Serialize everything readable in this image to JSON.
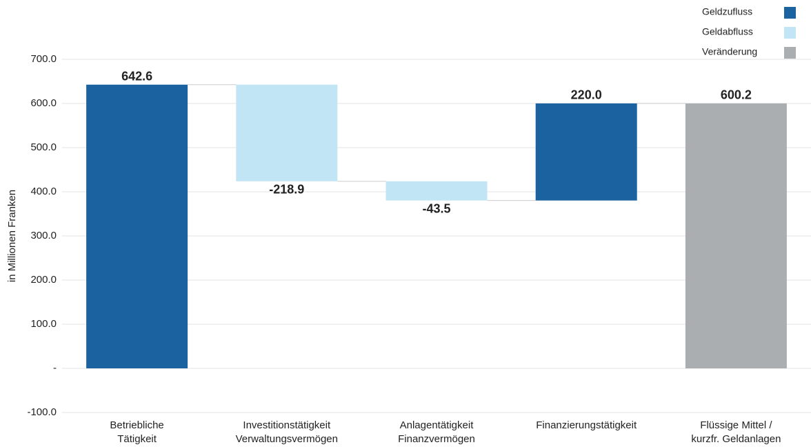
{
  "chart_data": {
    "type": "waterfall",
    "ylabel": "in Millionen Franken",
    "categories": [
      [
        "Betriebliche",
        "Tätigkeit"
      ],
      [
        "Investitionstätigkeit",
        "Verwaltungsvermögen"
      ],
      [
        "Anlagentätigkeit",
        "Finanzvermögen"
      ],
      [
        "Finanzierungstätigkeit"
      ],
      [
        "Flüssige Mittel /",
        "kurzfr. Geldanlagen"
      ]
    ],
    "values": [
      642.6,
      -218.9,
      -43.5,
      220.0,
      600.2
    ],
    "value_labels": [
      "642.6",
      "-218.9",
      "-43.5",
      "220.0",
      "600.2"
    ],
    "colors": [
      "#1a63a0",
      "#c2e5f5",
      "#c2e5f5",
      "#1a63a0",
      "#abaeb1"
    ],
    "is_total": [
      false,
      false,
      false,
      false,
      true
    ],
    "legend": [
      {
        "name": "Geldzufluss",
        "color": "#1a63a0"
      },
      {
        "name": "Geldabfluss",
        "color": "#c2e5f5"
      },
      {
        "name": "Veränderung",
        "color": "#abaeb1"
      }
    ],
    "legend_position": "upper right",
    "ylim": [
      -100,
      700
    ],
    "yticks": [
      {
        "value": -100,
        "label": "-100.0"
      },
      {
        "value": 0,
        "label": "-"
      },
      {
        "value": 100,
        "label": "100.0"
      },
      {
        "value": 200,
        "label": "200.0"
      },
      {
        "value": 300,
        "label": "300.0"
      },
      {
        "value": 400,
        "label": "400.0"
      },
      {
        "value": 500,
        "label": "500.0"
      },
      {
        "value": 600,
        "label": "600.0"
      },
      {
        "value": 700,
        "label": "700.0"
      }
    ],
    "grid": true
  }
}
